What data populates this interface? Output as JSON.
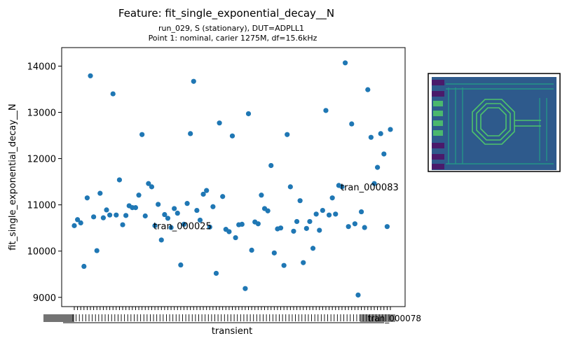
{
  "chart_data": {
    "type": "scatter",
    "title": "Feature: fit_single_exponential_decay__N",
    "subtitle_lines": [
      "run_029, S (stationary), DUT=ADPLL1",
      "Point 1: nominal, carier 1275M,  df=15.6kHz"
    ],
    "xlabel": "transient",
    "ylabel": "fit_single_exponential_decay__N",
    "ylim": [
      8800,
      14400
    ],
    "yticks": [
      9000,
      10000,
      11000,
      12000,
      13000,
      14000
    ],
    "grid": false,
    "legend": "none",
    "marker_color": "#1f77b4",
    "x_tick_labels_legible": [
      "tran_000078"
    ],
    "values": [
      10550,
      10680,
      10610,
      9670,
      11150,
      13790,
      10740,
      10010,
      11250,
      10720,
      10890,
      10780,
      13400,
      10780,
      11540,
      10570,
      10770,
      10980,
      10940,
      10940,
      11210,
      12520,
      10760,
      11460,
      11390,
      10550,
      11010,
      10240,
      10790,
      10710,
      10510,
      10920,
      10820,
      9700,
      10580,
      11030,
      12540,
      13670,
      10880,
      10670,
      11230,
      11310,
      10520,
      10960,
      9520,
      12770,
      11180,
      10470,
      10420,
      12490,
      10290,
      10570,
      10580,
      9190,
      12970,
      10020,
      10630,
      10590,
      11210,
      10920,
      10870,
      11850,
      9960,
      10480,
      10500,
      9690,
      12520,
      11390,
      10430,
      10640,
      11090,
      9750,
      10490,
      10640,
      10060,
      10800,
      10450,
      10880,
      13040,
      10780,
      11150,
      10800,
      11420,
      11390,
      14070,
      10530,
      12750,
      10590,
      9050,
      10850,
      10510,
      13490,
      12460,
      11460,
      11810,
      12540,
      12100,
      10530,
      12630
    ],
    "annotations": [
      {
        "text": "tran_000025",
        "x_index": 25,
        "y": 10550
      },
      {
        "text": "tran_000083",
        "x_index": 83,
        "y": 11390
      }
    ]
  },
  "inset": {
    "description_name": "chip-layout-thumbnail",
    "colors": {
      "background": "#2e5a8c",
      "pattern": "#23a087",
      "highlight": "#4ec36b",
      "pad": "#4a1a6b"
    }
  }
}
